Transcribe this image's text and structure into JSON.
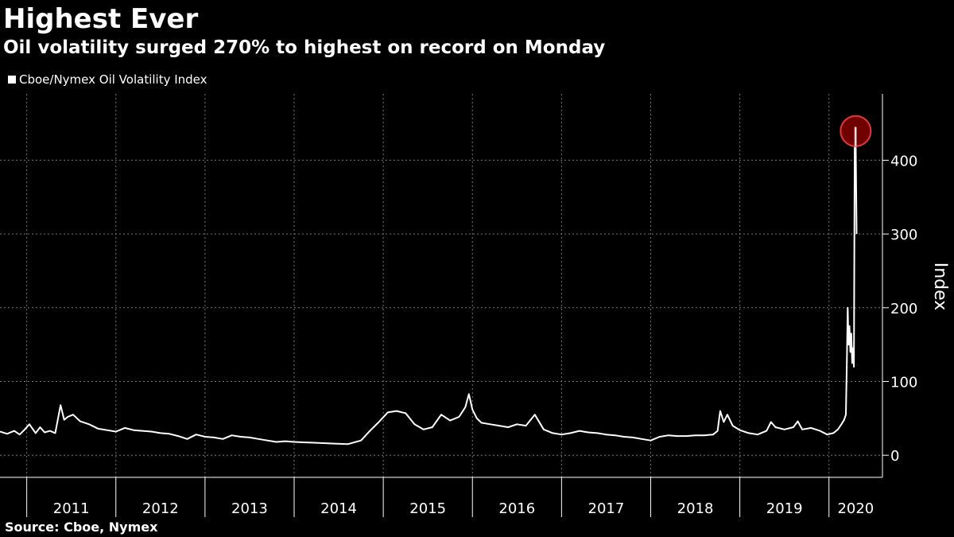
{
  "chart_data": {
    "type": "line",
    "title": "Highest Ever",
    "subtitle": "Oil volatility surged 270% to highest on record on Monday",
    "source": "Source: Cboe, Nymex",
    "ylabel": "Index",
    "ylim": [
      -30,
      490
    ],
    "yticks": [
      0,
      100,
      200,
      300,
      400
    ],
    "xlim": [
      2010.7,
      2020.6
    ],
    "year_boundaries": [
      2011,
      2012,
      2013,
      2014,
      2015,
      2016,
      2017,
      2018,
      2019,
      2020
    ],
    "x_tick_labels": [
      "2011",
      "2012",
      "2013",
      "2014",
      "2015",
      "2016",
      "2017",
      "2018",
      "2019",
      "2020"
    ],
    "grid": true,
    "legend_position": "top-left",
    "highlight": {
      "x": 2020.3,
      "y": 445
    },
    "series": [
      {
        "name": "Cboe/Nymex Oil Volatility Index",
        "color": "#ffffff",
        "x": [
          2010.7,
          2010.78,
          2010.86,
          2010.92,
          2010.97,
          2011.03,
          2011.1,
          2011.15,
          2011.2,
          2011.26,
          2011.32,
          2011.38,
          2011.42,
          2011.46,
          2011.52,
          2011.6,
          2011.7,
          2011.8,
          2011.9,
          2012.0,
          2012.1,
          2012.2,
          2012.3,
          2012.4,
          2012.5,
          2012.6,
          2012.7,
          2012.8,
          2012.9,
          2013.0,
          2013.1,
          2013.2,
          2013.3,
          2013.4,
          2013.5,
          2013.6,
          2013.7,
          2013.8,
          2013.9,
          2014.0,
          2014.2,
          2014.4,
          2014.6,
          2014.75,
          2014.85,
          2014.95,
          2015.05,
          2015.15,
          2015.25,
          2015.35,
          2015.45,
          2015.55,
          2015.65,
          2015.75,
          2015.85,
          2015.92,
          2015.96,
          2016.0,
          2016.05,
          2016.1,
          2016.2,
          2016.3,
          2016.4,
          2016.5,
          2016.6,
          2016.7,
          2016.8,
          2016.9,
          2017.0,
          2017.1,
          2017.2,
          2017.3,
          2017.4,
          2017.5,
          2017.6,
          2017.7,
          2017.8,
          2017.9,
          2018.0,
          2018.1,
          2018.2,
          2018.3,
          2018.4,
          2018.5,
          2018.6,
          2018.7,
          2018.75,
          2018.78,
          2018.82,
          2018.86,
          2018.92,
          2019.0,
          2019.1,
          2019.2,
          2019.3,
          2019.35,
          2019.4,
          2019.5,
          2019.6,
          2019.65,
          2019.7,
          2019.8,
          2019.9,
          2019.98,
          2020.05,
          2020.1,
          2020.14,
          2020.17,
          2020.19,
          2020.2,
          2020.21,
          2020.22,
          2020.23,
          2020.24,
          2020.25,
          2020.26,
          2020.27,
          2020.28,
          2020.29,
          2020.3,
          2020.31
        ],
        "values": [
          32,
          29,
          33,
          28,
          34,
          42,
          30,
          38,
          31,
          33,
          30,
          68,
          48,
          52,
          55,
          46,
          42,
          36,
          34,
          32,
          37,
          34,
          33,
          32,
          30,
          29,
          26,
          22,
          28,
          25,
          24,
          22,
          27,
          25,
          24,
          22,
          20,
          18,
          19,
          18,
          17,
          16,
          15,
          20,
          33,
          45,
          58,
          60,
          57,
          42,
          35,
          38,
          55,
          47,
          52,
          65,
          83,
          62,
          50,
          44,
          42,
          40,
          38,
          42,
          40,
          55,
          35,
          30,
          28,
          30,
          33,
          31,
          30,
          28,
          27,
          25,
          24,
          22,
          20,
          25,
          27,
          26,
          26,
          27,
          27,
          28,
          33,
          60,
          45,
          55,
          40,
          34,
          30,
          28,
          33,
          45,
          38,
          35,
          38,
          46,
          35,
          37,
          33,
          28,
          30,
          35,
          42,
          48,
          55,
          125,
          200,
          150,
          175,
          140,
          165,
          125,
          145,
          120,
          445,
          420,
          300
        ]
      }
    ]
  }
}
